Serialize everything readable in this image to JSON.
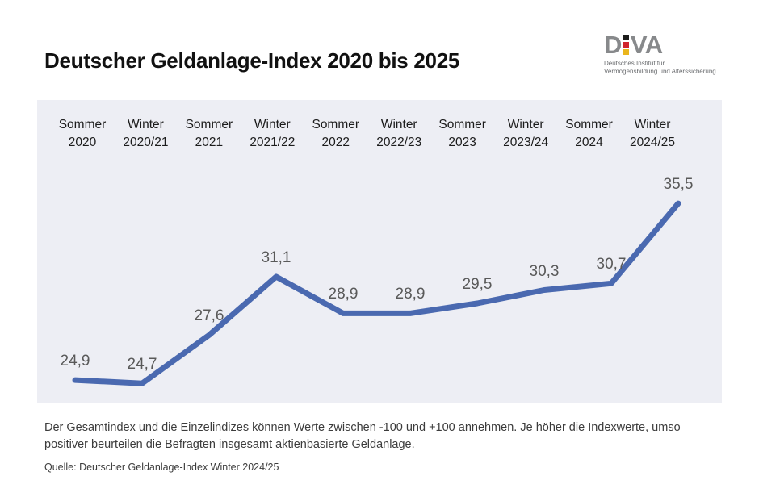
{
  "header": {
    "title": "Deutscher Geldanlage-Index 2020 bis 2025",
    "logo": {
      "text_left": "D",
      "text_right": "VA",
      "caption_line1": "Deutsches Institut für",
      "caption_line2": "Vermögensbildung und Alterssicherung",
      "text_color": "#87898b",
      "flag_colors": [
        "#1d1d1b",
        "#d0242c",
        "#eab61e"
      ]
    }
  },
  "chart_data": {
    "type": "line",
    "title": "Deutscher Geldanlage-Index 2020 bis 2025",
    "categories": [
      [
        "Sommer",
        "2020"
      ],
      [
        "Winter",
        "2020/21"
      ],
      [
        "Sommer",
        "2021"
      ],
      [
        "Winter",
        "2021/22"
      ],
      [
        "Sommer",
        "2022"
      ],
      [
        "Winter",
        "2022/23"
      ],
      [
        "Sommer",
        "2023"
      ],
      [
        "Winter",
        "2023/24"
      ],
      [
        "Sommer",
        "2024"
      ],
      [
        "Winter",
        "2024/25"
      ]
    ],
    "values": [
      24.9,
      24.7,
      27.6,
      31.1,
      28.9,
      28.9,
      29.5,
      30.3,
      30.7,
      35.5
    ],
    "labels": [
      "24,9",
      "24,7",
      "27,6",
      "31,1",
      "28,9",
      "28,9",
      "29,5",
      "30,3",
      "30,7",
      "35,5"
    ],
    "ylim": [
      23.5,
      41.7
    ],
    "grid": false,
    "legend": false,
    "line_color": "#4a69b0",
    "panel_bg": "#edeef4",
    "label_color": "#595959",
    "category_color": "#1c1c1c"
  },
  "footer": {
    "note": "Der Gesamtindex und die Einzelindizes können Werte zwischen -100 und +100 annehmen. Je höher die Indexwerte, umso positiver beurteilen die Befragten insgesamt aktienbasierte Geldanlage.",
    "source": "Quelle: Deutscher Geldanlage-Index Winter 2024/25"
  }
}
